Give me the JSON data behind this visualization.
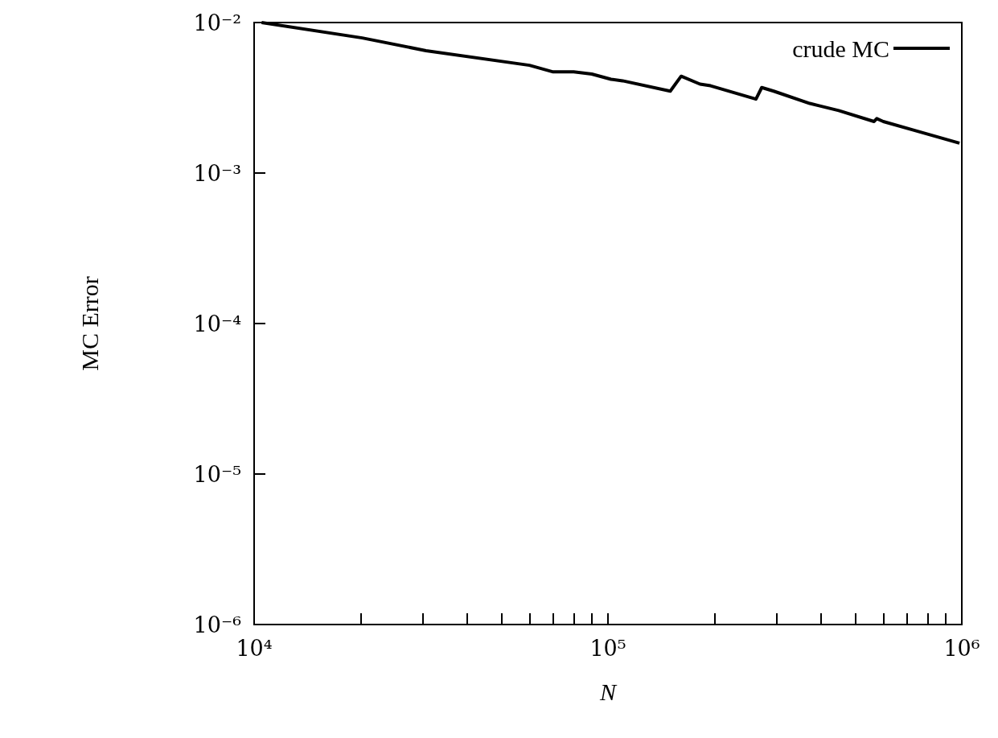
{
  "chart_data": {
    "type": "line",
    "xlabel": "N",
    "ylabel": "MC Error",
    "log": "xy",
    "grid": false,
    "legend": "top right",
    "marker": "none",
    "line_style": "solid",
    "xlim": [
      10000,
      1000000
    ],
    "ylim": [
      1e-06,
      0.01
    ],
    "xticks": [
      {
        "value": 10000,
        "label": "10⁴"
      },
      {
        "value": 20000,
        "label": null
      },
      {
        "value": 30000,
        "label": null
      },
      {
        "value": 40000,
        "label": null
      },
      {
        "value": 50000,
        "label": null
      },
      {
        "value": 60000,
        "label": null
      },
      {
        "value": 70000,
        "label": null
      },
      {
        "value": 80000,
        "label": null
      },
      {
        "value": 90000,
        "label": null
      },
      {
        "value": 100000,
        "label": "10⁵"
      },
      {
        "value": 200000,
        "label": null
      },
      {
        "value": 300000,
        "label": null
      },
      {
        "value": 400000,
        "label": null
      },
      {
        "value": 500000,
        "label": null
      },
      {
        "value": 600000,
        "label": null
      },
      {
        "value": 700000,
        "label": null
      },
      {
        "value": 800000,
        "label": null
      },
      {
        "value": 900000,
        "label": null
      },
      {
        "value": 1000000,
        "label": "10⁶"
      }
    ],
    "yticks": [
      {
        "value": 1e-06,
        "label": "10⁻⁶"
      },
      {
        "value": 1e-05,
        "label": "10⁻⁵"
      },
      {
        "value": 0.0001,
        "label": "10⁻⁴"
      },
      {
        "value": 0.001,
        "label": "10⁻³"
      },
      {
        "value": 0.01,
        "label": "10⁻²"
      }
    ],
    "series": [
      {
        "name": "crude MC",
        "color": "#000000",
        "x": [
          10500,
          20200,
          30600,
          60000,
          70000,
          80000,
          90000,
          102000,
          110000,
          150000,
          161000,
          182000,
          195000,
          262000,
          272000,
          294000,
          372000,
          449000,
          565000,
          575000,
          600000,
          747000,
          985000
        ],
        "values": [
          0.01,
          0.0079,
          0.0065,
          0.0052,
          0.0047,
          0.0047,
          0.00455,
          0.0042,
          0.0041,
          0.0035,
          0.0044,
          0.0039,
          0.0038,
          0.0031,
          0.0037,
          0.0035,
          0.0029,
          0.0026,
          0.0022,
          0.0023,
          0.0022,
          0.0019,
          0.00158
        ]
      }
    ]
  }
}
